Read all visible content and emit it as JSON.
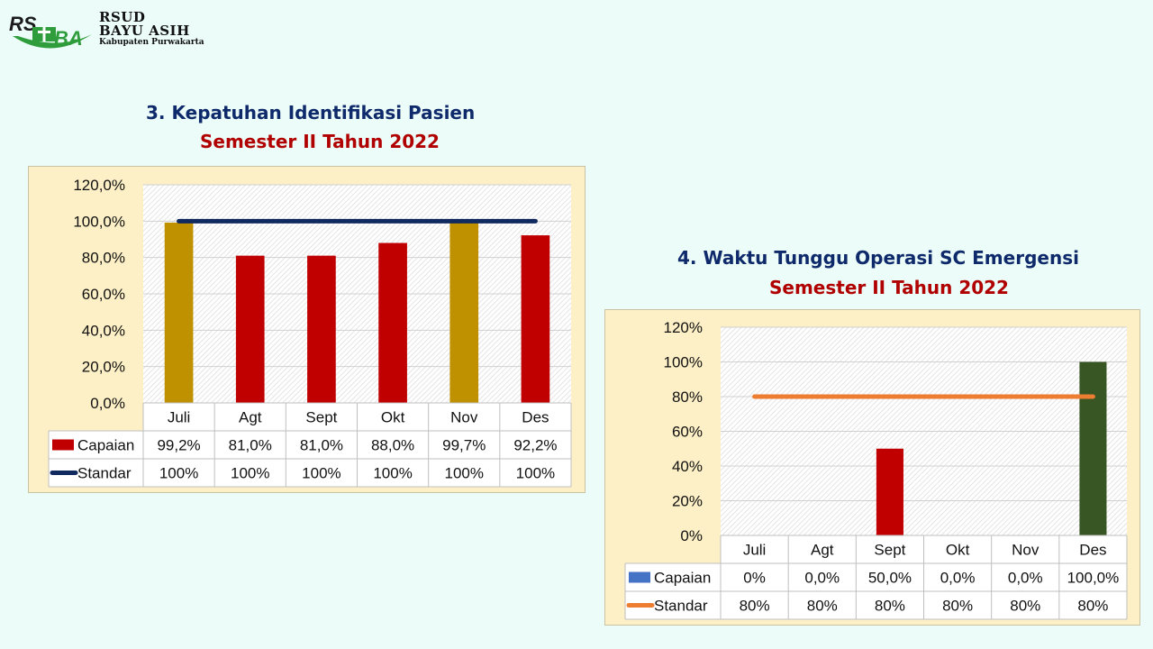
{
  "logo": {
    "line1": "RSUD",
    "line2": "BAYU ASIH",
    "line3": "Kabupaten Purwakarta"
  },
  "colors": {
    "title_navy": "#0f2a6b",
    "subtitle_red": "#b00000",
    "panel_bg": "#fdf0c6",
    "page_bg": "#ecfcf9"
  },
  "chart_data": [
    {
      "type": "bar",
      "title": "3. Kepatuhan Identifikasi Pasien",
      "subtitle": "Semester II Tahun 2022",
      "categories": [
        "Juli",
        "Agt",
        "Sept",
        "Okt",
        "Nov",
        "Des"
      ],
      "ylim": [
        0,
        120
      ],
      "yticks": [
        "0,0%",
        "20,0%",
        "40,0%",
        "60,0%",
        "80,0%",
        "100,0%",
        "120,0%"
      ],
      "grid": true,
      "legend": "data-table",
      "series": [
        {
          "name": "Capaian",
          "kind": "bar",
          "color": "#c00000",
          "values": [
            99.2,
            81.0,
            81.0,
            88.0,
            99.7,
            92.2
          ],
          "point_colors": [
            "#bf9000",
            "#c00000",
            "#c00000",
            "#c00000",
            "#bf9000",
            "#c00000"
          ],
          "labels": [
            "99,2%",
            "81,0%",
            "81,0%",
            "88,0%",
            "99,7%",
            "92,2%"
          ]
        },
        {
          "name": "Standar",
          "kind": "line",
          "color": "#10295e",
          "values": [
            100,
            100,
            100,
            100,
            100,
            100
          ],
          "labels": [
            "100%",
            "100%",
            "100%",
            "100%",
            "100%",
            "100%"
          ]
        }
      ]
    },
    {
      "type": "bar",
      "title": "4. Waktu Tunggu Operasi SC Emergensi",
      "subtitle": "Semester II Tahun 2022",
      "categories": [
        "Juli",
        "Agt",
        "Sept",
        "Okt",
        "Nov",
        "Des"
      ],
      "ylim": [
        0,
        120
      ],
      "yticks": [
        "0%",
        "20%",
        "40%",
        "60%",
        "80%",
        "100%",
        "120%"
      ],
      "grid": true,
      "legend": "data-table",
      "series": [
        {
          "name": "Capaian",
          "kind": "bar",
          "color": "#4472c4",
          "values": [
            0,
            0,
            50,
            0,
            0,
            100
          ],
          "point_colors": [
            "#4472c4",
            "#4472c4",
            "#c00000",
            "#4472c4",
            "#4472c4",
            "#375623"
          ],
          "labels": [
            "0%",
            "0,0%",
            "50,0%",
            "0,0%",
            "0,0%",
            "100,0%"
          ]
        },
        {
          "name": "Standar",
          "kind": "line",
          "color": "#ed7d31",
          "values": [
            80,
            80,
            80,
            80,
            80,
            80
          ],
          "labels": [
            "80%",
            "80%",
            "80%",
            "80%",
            "80%",
            "80%"
          ]
        }
      ]
    }
  ]
}
